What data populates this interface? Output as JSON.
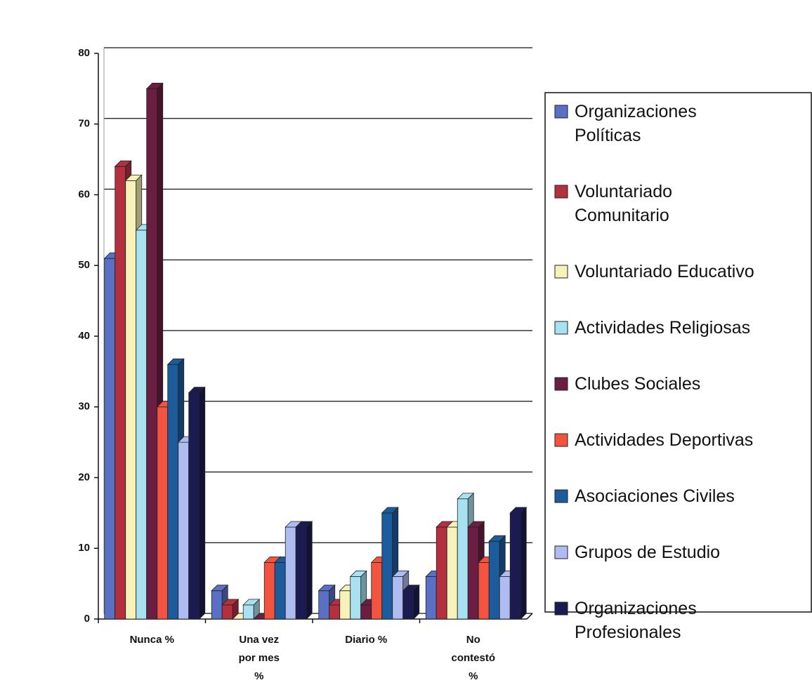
{
  "chart_data": {
    "type": "bar3d",
    "categories": [
      "Nunca %",
      "Una vez por mes %",
      "Diario %",
      "No contestó %"
    ],
    "series": [
      {
        "name": "Organizaciones Políticas",
        "color": "#5a70c4",
        "values": [
          51,
          4,
          4,
          6
        ]
      },
      {
        "name": "Voluntariado Comunitario",
        "color": "#b3303f",
        "values": [
          64,
          2,
          2,
          13
        ]
      },
      {
        "name": "Voluntariado Educativo",
        "color": "#f6f2b8",
        "values": [
          62,
          0,
          4,
          13
        ]
      },
      {
        "name": "Actividades Religiosas",
        "color": "#a8e2f2",
        "values": [
          55,
          2,
          6,
          17
        ]
      },
      {
        "name": "Clubes Sociales",
        "color": "#6b1d42",
        "values": [
          75,
          0,
          2,
          13
        ]
      },
      {
        "name": "Actividades Deportivas",
        "color": "#f2543f",
        "values": [
          30,
          8,
          8,
          8
        ]
      },
      {
        "name": "Asociaciones Civiles",
        "color": "#1c5c9c",
        "values": [
          36,
          8,
          15,
          11
        ]
      },
      {
        "name": "Grupos de Estudio",
        "color": "#aebcf2",
        "values": [
          25,
          13,
          6,
          6
        ]
      },
      {
        "name": "Organizaciones Profesionales",
        "color": "#1b1b52",
        "values": [
          32,
          13,
          4,
          15
        ]
      }
    ],
    "ylim": [
      0,
      80
    ],
    "yticks": [
      0,
      10,
      20,
      30,
      40,
      50,
      60,
      70,
      80
    ],
    "grid": true,
    "legend": "right"
  }
}
